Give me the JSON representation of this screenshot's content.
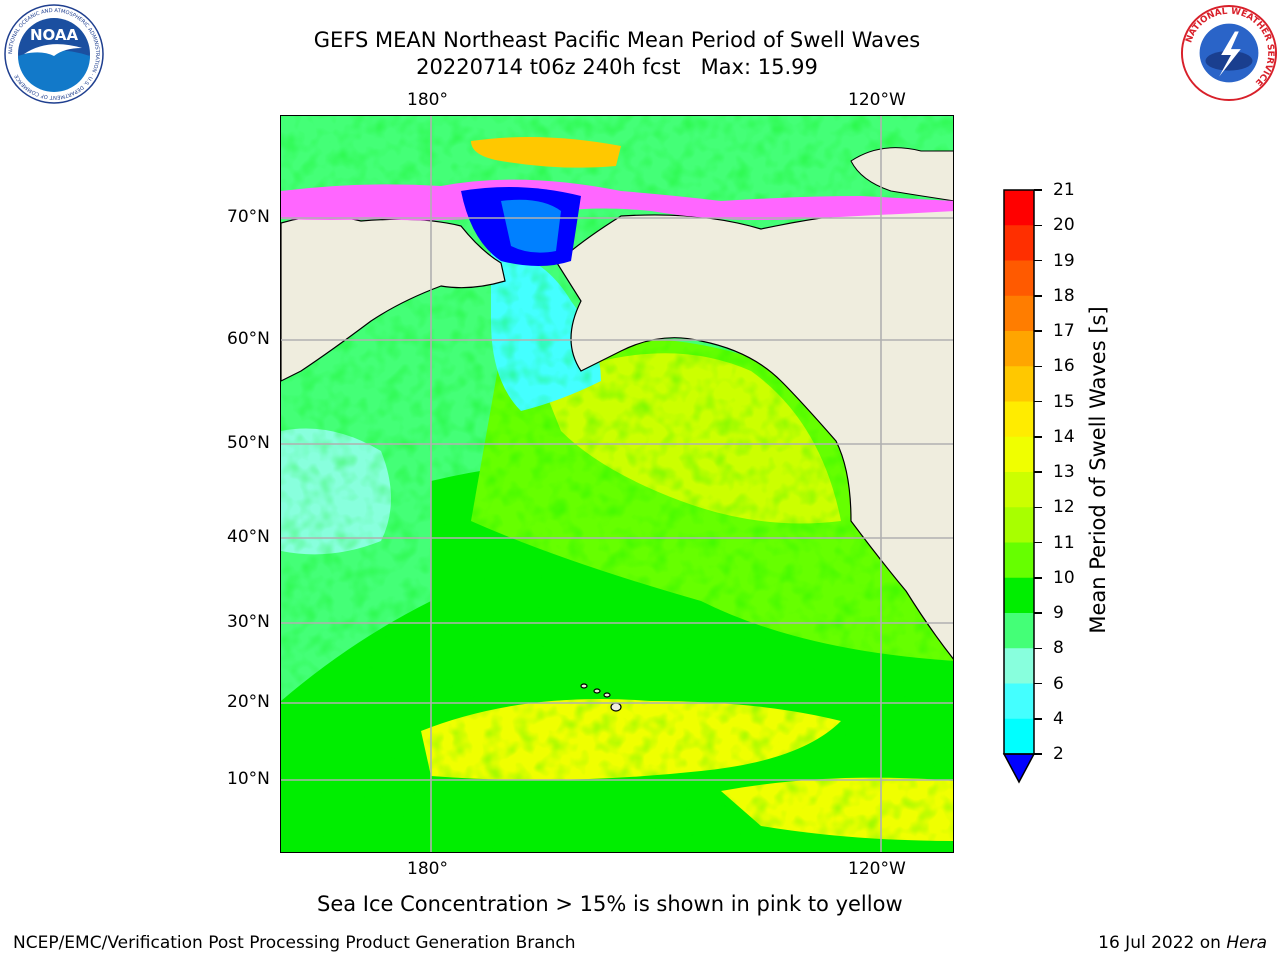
{
  "title": {
    "line1": "GEFS MEAN Northeast Pacific Mean Period of Swell Waves",
    "line2": "20220714 t06z 240h fcst   Max: 15.99"
  },
  "logos": {
    "noaa": {
      "text": "NOAA",
      "ring_text": "NATIONAL OCEANIC AND ATMOSPHERIC ADMINISTRATION · U.S. DEPARTMENT OF COMMERCE"
    },
    "nws": {
      "ring_text": "NATIONAL WEATHER SERVICE"
    }
  },
  "map": {
    "lon_labels": [
      "180°",
      "120°W"
    ],
    "lat_labels": [
      "70°N",
      "60°N",
      "50°N",
      "40°N",
      "30°N",
      "20°N",
      "10°N"
    ],
    "land_color": "#efedde",
    "grid_color": "#b0b0b0"
  },
  "colorbar": {
    "label": "Mean Period of Swell Waves [s]",
    "ticks": [
      "21",
      "20",
      "19",
      "18",
      "17",
      "16",
      "15",
      "14",
      "13",
      "12",
      "11",
      "10",
      "9",
      "8",
      "6",
      "4",
      "2"
    ],
    "colors": [
      "#ff0000",
      "#ff2f00",
      "#ff5a00",
      "#ff7d00",
      "#ffa500",
      "#ffc800",
      "#ffec00",
      "#f0ff00",
      "#ccff00",
      "#a8ff00",
      "#66ff00",
      "#00ee00",
      "#44ff77",
      "#88ffdd",
      "#44ffff",
      "#00ffff",
      "#00e5ff",
      "#0080ff"
    ],
    "extend_color": "#0000ff"
  },
  "note": "Sea Ice Concentration > 15% is shown in pink to yellow",
  "footer": {
    "left": "NCEP/EMC/Verification Post Processing Product Generation Branch",
    "date": "16 Jul 2022 on ",
    "host": "Hera"
  }
}
